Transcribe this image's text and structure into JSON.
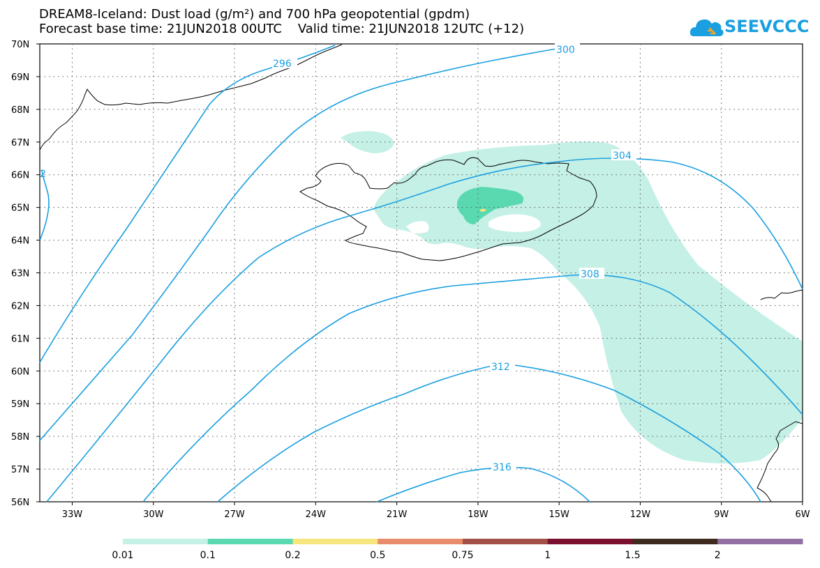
{
  "title": {
    "line1": "DREAM8-Iceland: Dust load (g/m²) and 700 hPa geopotential (gpdm)",
    "line2": "Forecast base time: 21JUN2018 00UTC    Valid time: 21JUN2018 12UTC (+12)"
  },
  "logo": {
    "text": "SEEVCCC",
    "icon": "cloud-logo-icon",
    "color": "#1a9fe0"
  },
  "axes": {
    "lat_labels": [
      "70N",
      "69N",
      "68N",
      "67N",
      "66N",
      "65N",
      "64N",
      "63N",
      "62N",
      "61N",
      "60N",
      "59N",
      "58N",
      "57N",
      "56N"
    ],
    "lon_labels": [
      "33W",
      "30W",
      "27W",
      "24W",
      "21W",
      "18W",
      "15W",
      "12W",
      "9W",
      "6W"
    ],
    "lon_values": [
      -33,
      -30,
      -27,
      -24,
      -21,
      -18,
      -15,
      -12,
      -9,
      -6
    ],
    "lat_values": [
      70,
      69,
      68,
      67,
      66,
      65,
      64,
      63,
      62,
      61,
      60,
      59,
      58,
      57,
      56
    ],
    "lon_range": [
      -34.2,
      -6
    ],
    "lat_range": [
      56,
      70
    ],
    "grid": "dotted"
  },
  "contours": {
    "color": "#1a9fe0",
    "labels": [
      "296",
      "300",
      "304",
      "308",
      "312",
      "316"
    ],
    "edge_label": "2"
  },
  "colorbar": {
    "labels": [
      "0.01",
      "0.1",
      "0.2",
      "0.5",
      "0.75",
      "1",
      "1.5",
      "2"
    ],
    "colors": [
      "#c5f0e6",
      "#5ad9b0",
      "#f7e57e",
      "#e88c6c",
      "#a34f48",
      "#7a0f2e",
      "#3e2a1e",
      "#946fa3"
    ]
  }
}
